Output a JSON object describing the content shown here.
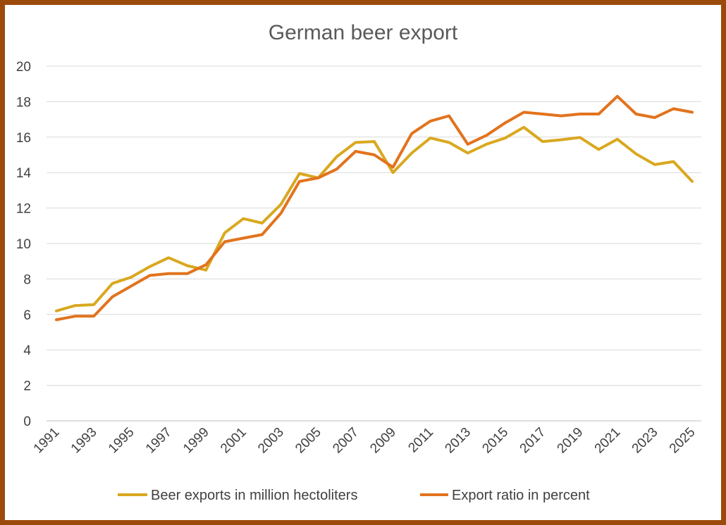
{
  "chart_data": {
    "type": "line",
    "title": "German beer export",
    "xlabel": "",
    "ylabel": "",
    "ylim": [
      0,
      20
    ],
    "yticks": [
      0,
      2,
      4,
      6,
      8,
      10,
      12,
      14,
      16,
      18,
      20
    ],
    "x": [
      1991,
      1992,
      1993,
      1994,
      1995,
      1996,
      1997,
      1998,
      1999,
      2000,
      2001,
      2002,
      2003,
      2004,
      2005,
      2006,
      2007,
      2008,
      2009,
      2010,
      2011,
      2012,
      2013,
      2014,
      2015,
      2016,
      2017,
      2018,
      2019,
      2020,
      2021,
      2022,
      2023,
      2024,
      2025
    ],
    "xtick_labels": [
      "1991",
      "1993",
      "1995",
      "1997",
      "1999",
      "2001",
      "2003",
      "2005",
      "2007",
      "2009",
      "2011",
      "2013",
      "2015",
      "2017",
      "2019",
      "2021",
      "2023",
      "2025"
    ],
    "grid": true,
    "legend_position": "bottom",
    "series": [
      {
        "name": "Beer exports in million hectoliters",
        "color": "#d9a81f",
        "values": [
          6.2,
          6.5,
          6.55,
          7.75,
          8.1,
          8.7,
          9.2,
          8.75,
          8.5,
          10.6,
          11.4,
          11.15,
          12.2,
          13.95,
          13.7,
          14.9,
          15.7,
          15.75,
          14.0,
          15.1,
          15.95,
          15.7,
          15.1,
          15.6,
          15.95,
          16.55,
          15.75,
          15.85,
          15.98,
          15.3,
          15.88,
          15.05,
          14.45,
          14.62,
          13.5
        ]
      },
      {
        "name": "Export ratio in percent",
        "color": "#e2731d",
        "values": [
          5.7,
          5.9,
          5.9,
          7.0,
          7.6,
          8.2,
          8.3,
          8.3,
          8.8,
          10.1,
          10.3,
          10.5,
          11.7,
          13.5,
          13.7,
          14.2,
          15.2,
          15.0,
          14.3,
          16.2,
          16.9,
          17.2,
          15.6,
          16.1,
          16.8,
          17.4,
          17.3,
          17.2,
          17.3,
          17.3,
          18.3,
          17.3,
          17.1,
          17.6,
          17.4
        ]
      }
    ]
  }
}
